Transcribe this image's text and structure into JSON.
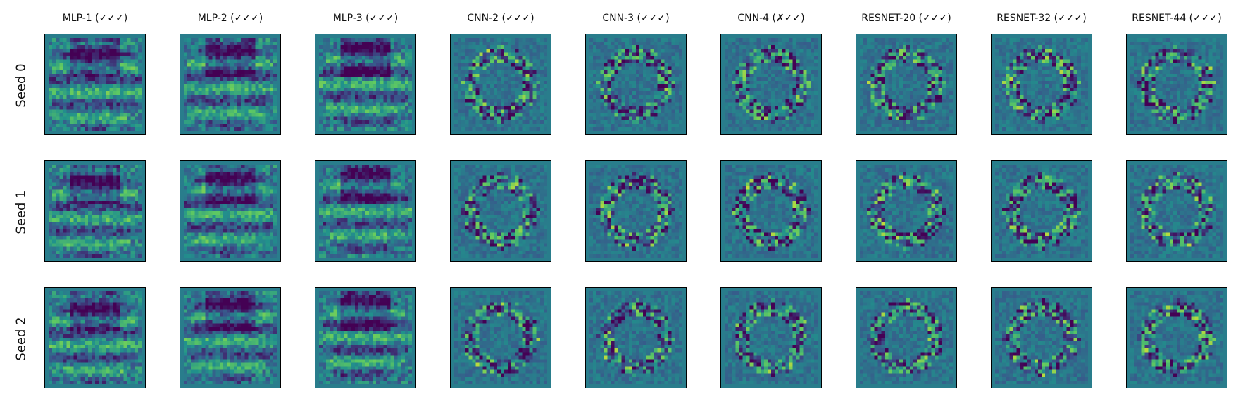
{
  "chart_data": {
    "type": "heatmap",
    "columns": [
      "MLP-1 (✓✓✓)",
      "MLP-2 (✓✓✓)",
      "MLP-3 (✓✓✓)",
      "CNN-2 (✓✓✓)",
      "CNN-3 (✓✓✓)",
      "CNN-4 (✗✓✓)",
      "RESNET-20 (✓✓✓)",
      "RESNET-32 (✓✓✓)",
      "RESNET-44 (✓✓✓)"
    ],
    "rows": [
      "Seed 0",
      "Seed 1",
      "Seed 2"
    ],
    "colormap": [
      "#440154",
      "#3b528b",
      "#21918c",
      "#5ec962",
      "#fde725"
    ],
    "background": "#26828e",
    "border": "#000000"
  }
}
